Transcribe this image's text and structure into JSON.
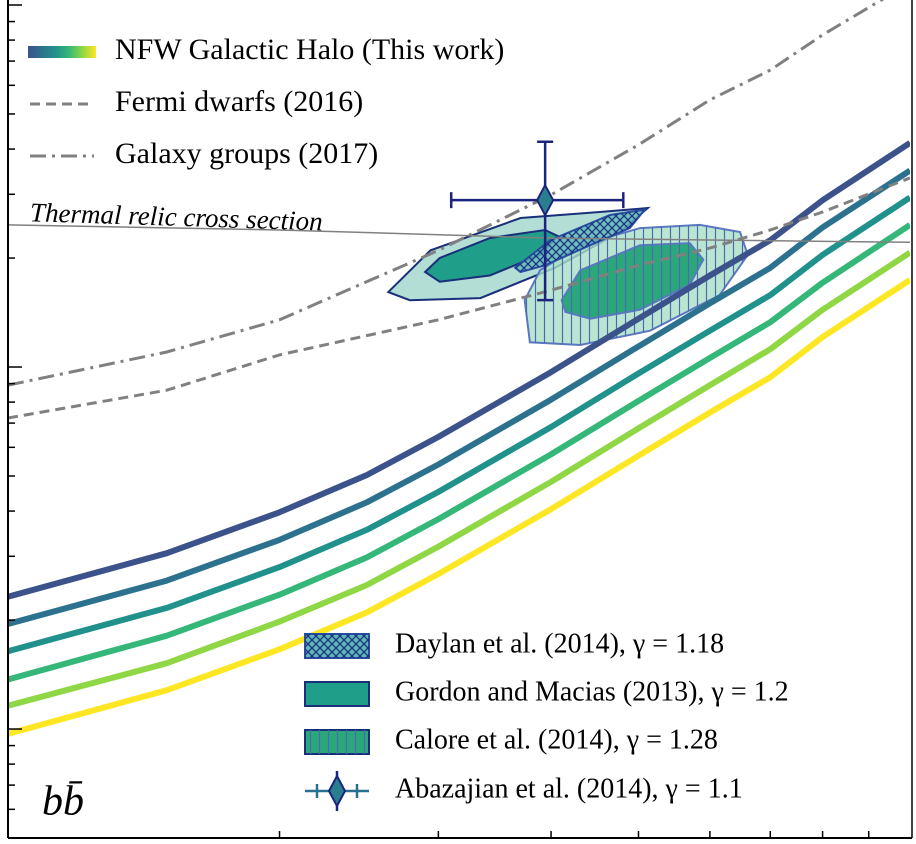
{
  "chart_data": {
    "type": "line",
    "xscale": "log",
    "yscale": "log",
    "xlim": [
      10,
      100
    ],
    "ylim": [
      5e-28,
      1e-25
    ],
    "xticks": [
      20,
      30,
      40,
      50,
      60,
      70,
      80,
      90
    ],
    "yticks": [
      6e-28,
      7e-28,
      8e-28,
      9e-28,
      1e-27,
      2e-27,
      3e-27,
      4e-27,
      5e-27,
      6e-27,
      7e-27,
      8e-27,
      9e-27,
      1e-26,
      2e-26,
      3e-26,
      4e-26,
      5e-26,
      6e-26,
      7e-26,
      8e-26,
      9e-26,
      1e-25
    ],
    "annotation": "Thermal relic cross section",
    "panel_label": "bb̄",
    "nfw": {
      "name": "NFW Galactic Halo (This work)",
      "colors": [
        "#3b528b",
        "#2c728e",
        "#21918c",
        "#35b779",
        "#8fd744",
        "#fde725"
      ],
      "x": [
        10,
        15,
        20,
        25,
        30,
        40,
        50,
        60,
        70,
        80,
        100
      ],
      "lines": [
        [
          2.32e-27,
          3.06e-27,
          3.97e-27,
          5.03e-27,
          6.41e-27,
          9.68e-27,
          1.36e-26,
          1.79e-26,
          2.24e-26,
          2.89e-26,
          4.16e-26
        ],
        [
          1.95e-27,
          2.57e-27,
          3.33e-27,
          4.23e-27,
          5.38e-27,
          8.13e-27,
          1.14e-26,
          1.5e-26,
          1.88e-26,
          2.43e-26,
          3.49e-26
        ],
        [
          1.64e-27,
          2.16e-27,
          2.8e-27,
          3.55e-27,
          4.52e-27,
          6.83e-27,
          9.6e-27,
          1.26e-26,
          1.58e-26,
          2.04e-26,
          2.94e-26
        ],
        [
          1.37e-27,
          1.81e-27,
          2.35e-27,
          2.98e-27,
          3.8e-27,
          5.74e-27,
          8.06e-27,
          1.06e-26,
          1.33e-26,
          1.71e-26,
          2.47e-26
        ],
        [
          1.16e-27,
          1.52e-27,
          1.98e-27,
          2.5e-27,
          3.19e-27,
          4.82e-27,
          6.77e-27,
          8.91e-27,
          1.12e-26,
          1.44e-26,
          2.07e-26
        ],
        [
          9.7e-28,
          1.28e-27,
          1.66e-27,
          2.1e-27,
          2.68e-27,
          4.05e-27,
          5.69e-27,
          7.49e-27,
          9.37e-27,
          1.21e-26,
          1.74e-26
        ]
      ]
    },
    "series": [
      {
        "name": "Fermi dwarfs (2016)",
        "color": "#808080",
        "dash": "dashed",
        "x": [
          10,
          15,
          20,
          30,
          40,
          50,
          60,
          70,
          80,
          100
        ],
        "values": [
          7.23e-27,
          8.63e-27,
          1.08e-26,
          1.35e-26,
          1.63e-26,
          1.91e-26,
          2.13e-26,
          2.39e-26,
          2.68e-26,
          3.33e-26
        ]
      },
      {
        "name": "Galaxy groups (2017)",
        "color": "#808080",
        "dash": "dashdot",
        "x": [
          10,
          15,
          20,
          30,
          40,
          50,
          60,
          70,
          80,
          100
        ],
        "values": [
          8.91e-27,
          1.1e-26,
          1.35e-26,
          2.1e-26,
          2.99e-26,
          4.11e-26,
          5.47e-26,
          6.61e-26,
          8.27e-26,
          1.15e-25
        ]
      }
    ],
    "thermal_relic": {
      "color": "#808080",
      "x": [
        10,
        20,
        40,
        100
      ],
      "values": [
        2.47e-26,
        2.39e-26,
        2.27e-26,
        2.21e-26
      ]
    },
    "regions": [
      {
        "name": "Daylan et al. (2014), γ = 1.18",
        "hatch": "xx",
        "edgecolor": "#2a4fa0",
        "contours": [
          {
            "color": "#5fb8b0",
            "x": [
              36.5,
              39.9,
              46.5,
              50.8,
              48.9,
              44.2,
              39.4,
              37.0
            ],
            "y": [
              1.88e-26,
              2.24e-26,
              2.63e-26,
              2.72e-26,
              2.42e-26,
              2.17e-26,
              1.91e-26,
              1.83e-26
            ]
          }
        ]
      },
      {
        "name": "Gordon and Macias (2013), γ = 1.2",
        "edgecolor": "#1a2f7a",
        "contours": [
          {
            "color": "#9fd6cc",
            "x": [
              26.4,
              29.4,
              37.0,
              45.3,
              51.2,
              47.7,
              40.4,
              33.4,
              27.9
            ],
            "y": [
              1.61e-26,
              2.1e-26,
              2.58e-26,
              2.68e-26,
              2.75e-26,
              2.36e-26,
              1.88e-26,
              1.55e-26,
              1.53e-26
            ]
          },
          {
            "color": "#1f9e89",
            "x": [
              29.0,
              30.1,
              34.2,
              39.4,
              40.7,
              38.9,
              34.2,
              30.1
            ],
            "y": [
              1.83e-26,
              2e-26,
              2.27e-26,
              2.39e-26,
              2.3e-26,
              2.04e-26,
              1.79e-26,
              1.72e-26
            ]
          }
        ]
      },
      {
        "name": "Calore et al. (2014), γ = 1.28",
        "hatch": "|",
        "edgecolor": "#5a78c0",
        "contours": [
          {
            "color": "#a9e0c6",
            "x": [
              37.4,
              38.9,
              43.1,
              50.2,
              58.5,
              64.8,
              66.1,
              61.5,
              51.5,
              43.1,
              37.9
            ],
            "y": [
              1.53e-26,
              1.85e-26,
              2.17e-26,
              2.42e-26,
              2.47e-26,
              2.36e-26,
              2.04e-26,
              1.58e-26,
              1.26e-26,
              1.15e-26,
              1.17e-26
            ]
          },
          {
            "color": "#2aa87a",
            "x": [
              41.1,
              43.1,
              50.2,
              57.0,
              59.0,
              57.0,
              50.2,
              44.2,
              41.5
            ],
            "y": [
              1.53e-26,
              1.85e-26,
              2.17e-26,
              2.2e-26,
              1.98e-26,
              1.69e-26,
              1.44e-26,
              1.36e-26,
              1.42e-26
            ]
          }
        ]
      }
    ],
    "point": {
      "name": "Abazajian et al. (2014), γ = 1.1",
      "color": "#1a237e",
      "fill": "#2a7f8f",
      "x": 39.4,
      "y": 2.89e-26,
      "x_range": [
        31.0,
        48.1
      ],
      "y_range": [
        1.53e-26,
        4.19e-26
      ]
    }
  }
}
